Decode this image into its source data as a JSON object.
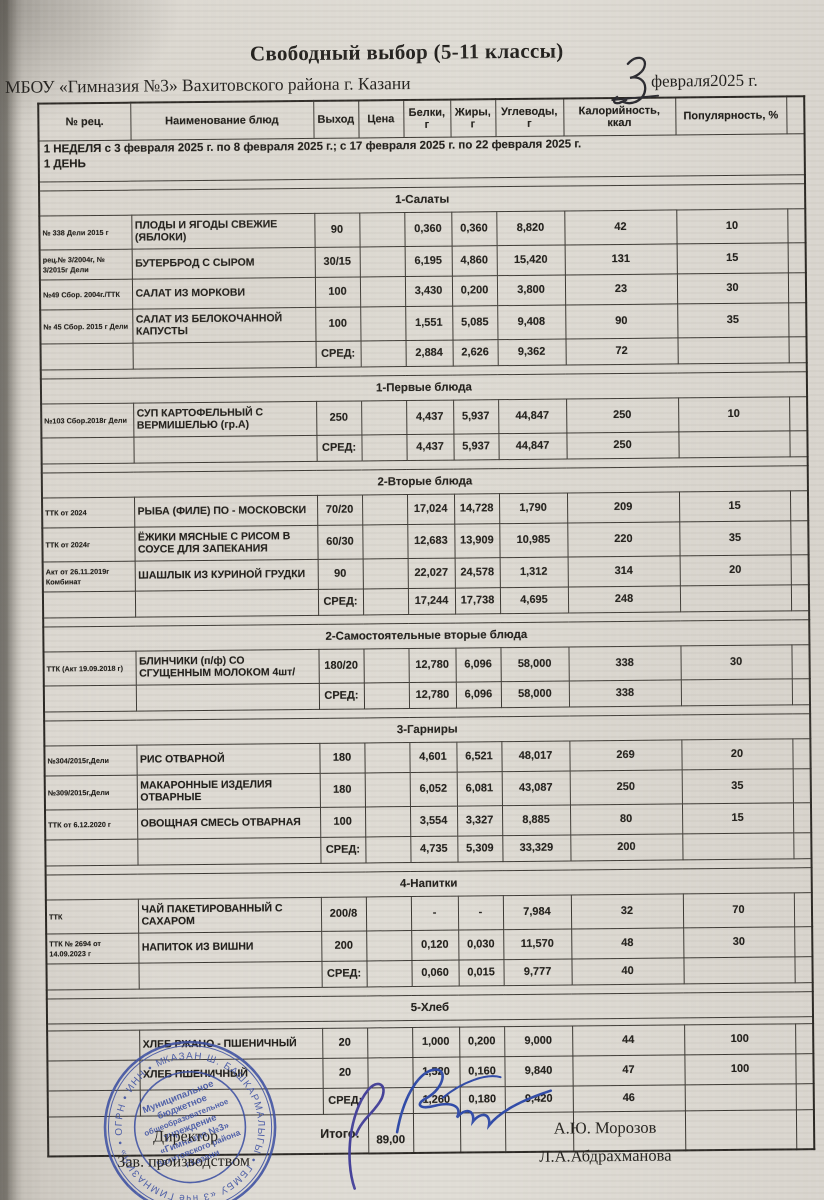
{
  "header": {
    "title": "Свободный выбор (5-11 классы)",
    "school": "МБОУ «Гимназия №3» Вахитовского района г. Казани",
    "date_day_handwritten": "3",
    "date_printed": "февраля2025 г."
  },
  "table": {
    "columns": [
      "№ рец.",
      "Наименование блюд",
      "Выход",
      "Цена",
      "Белки,\nг",
      "Жиры,\nг",
      "Углеводы,\nг",
      "Калорийность,\nккал",
      "Популярность, %"
    ],
    "week_line1": "1 НЕДЕЛЯ  с 3 февраля 2025 г. по 8 февраля 2025 г.; с 17 февраля 2025 г. по 22 февраля 2025 г.",
    "week_line2": "1 ДЕНЬ",
    "sred_label": "СРЕД:",
    "total_label": "Итого:",
    "total_value": "89,00",
    "sections": [
      {
        "title": "1-Салаты",
        "rows": [
          {
            "rec": "№ 338 Дели 2015 г",
            "name": "ПЛОДЫ И ЯГОДЫ СВЕЖИЕ (ЯБЛОКИ)",
            "out": "90",
            "price": "",
            "protein": "0,360",
            "fat": "0,360",
            "carbs": "8,820",
            "kcal": "42",
            "pop": "10",
            "tall": true
          },
          {
            "rec": "рец.№ 3/2004г, № 3/2015г Дели",
            "name": "БУТЕРБРОД С СЫРОМ",
            "out": "30/15",
            "price": "",
            "protein": "6,195",
            "fat": "4,860",
            "carbs": "15,420",
            "kcal": "131",
            "pop": "15"
          },
          {
            "rec": "№49 Сбор. 2004г./ТТК",
            "name": "САЛАТ ИЗ МОРКОВИ",
            "out": "100",
            "price": "",
            "protein": "3,430",
            "fat": "0,200",
            "carbs": "3,800",
            "kcal": "23",
            "pop": "30"
          },
          {
            "rec": "№ 45 Сбор. 2015 г Дели",
            "name": "САЛАТ ИЗ БЕЛОКОЧАННОЙ КАПУСТЫ",
            "out": "100",
            "price": "",
            "protein": "1,551",
            "fat": "5,085",
            "carbs": "9,408",
            "kcal": "90",
            "pop": "35",
            "tall": true
          }
        ],
        "sred": {
          "protein": "2,884",
          "fat": "2,626",
          "carbs": "9,362",
          "kcal": "72"
        }
      },
      {
        "title": "1-Первые блюда",
        "rows": [
          {
            "rec": "№103 Сбор.2018г Дели",
            "name": "СУП КАРТОФЕЛЬНЫЙ С ВЕРМИШЕЛЬЮ (гр.А)",
            "out": "250",
            "price": "",
            "protein": "4,437",
            "fat": "5,937",
            "carbs": "44,847",
            "kcal": "250",
            "pop": "10",
            "tall": true
          }
        ],
        "sred": {
          "protein": "4,437",
          "fat": "5,937",
          "carbs": "44,847",
          "kcal": "250"
        }
      },
      {
        "title": "2-Вторые блюда",
        "rows": [
          {
            "rec": "ТТК от 2024",
            "name": "РЫБА (ФИЛЕ) ПО - МОСКОВСКИ",
            "out": "70/20",
            "price": "",
            "protein": "17,024",
            "fat": "14,728",
            "carbs": "1,790",
            "kcal": "209",
            "pop": "15"
          },
          {
            "rec": "ТТК от 2024г",
            "name": "ЁЖИКИ МЯСНЫЕ С РИСОМ В СОУСЕ ДЛЯ ЗАПЕКАНИЯ",
            "out": "60/30",
            "price": "",
            "protein": "12,683",
            "fat": "13,909",
            "carbs": "10,985",
            "kcal": "220",
            "pop": "35",
            "tall": true
          },
          {
            "rec": "Акт от 26.11.2019г Комбинат",
            "name": "ШАШЛЫК ИЗ КУРИНОЙ ГРУДКИ",
            "out": "90",
            "price": "",
            "protein": "22,027",
            "fat": "24,578",
            "carbs": "1,312",
            "kcal": "314",
            "pop": "20"
          }
        ],
        "sred": {
          "protein": "17,244",
          "fat": "17,738",
          "carbs": "4,695",
          "kcal": "248"
        }
      },
      {
        "title": "2-Самостоятельные вторые блюда",
        "rows": [
          {
            "rec": "ТТК (Акт 19.09.2018 г)",
            "name": "БЛИНЧИКИ  (п/ф) СО СГУЩЕННЫМ МОЛОКОМ 4шт/",
            "out": "180/20",
            "price": "",
            "protein": "12,780",
            "fat": "6,096",
            "carbs": "58,000",
            "kcal": "338",
            "pop": "30",
            "tall": true
          }
        ],
        "sred": {
          "protein": "12,780",
          "fat": "6,096",
          "carbs": "58,000",
          "kcal": "338"
        }
      },
      {
        "title": "3-Гарниры",
        "rows": [
          {
            "rec": "№304/2015г,Дели",
            "name": "РИС ОТВАРНОЙ",
            "out": "180",
            "price": "",
            "protein": "4,601",
            "fat": "6,521",
            "carbs": "48,017",
            "kcal": "269",
            "pop": "20"
          },
          {
            "rec": "№309/2015г,Дели",
            "name": "МАКАРОННЫЕ ИЗДЕЛИЯ ОТВАРНЫЕ",
            "out": "180",
            "price": "",
            "protein": "6,052",
            "fat": "6,081",
            "carbs": "43,087",
            "kcal": "250",
            "pop": "35",
            "tall": true
          },
          {
            "rec": "ТТК  от 6.12.2020 г",
            "name": "ОВОЩНАЯ СМЕСЬ ОТВАРНАЯ",
            "out": "100",
            "price": "",
            "protein": "3,554",
            "fat": "3,327",
            "carbs": "8,885",
            "kcal": "80",
            "pop": "15"
          }
        ],
        "sred": {
          "protein": "4,735",
          "fat": "5,309",
          "carbs": "33,329",
          "kcal": "200"
        }
      },
      {
        "title": "4-Напитки",
        "rows": [
          {
            "rec": "ТТК",
            "name": "ЧАЙ ПАКЕТИРОВАННЫЙ  С САХАРОМ",
            "out": "200/8",
            "price": "",
            "protein": "-",
            "fat": "-",
            "carbs": "7,984",
            "kcal": "32",
            "pop": "70",
            "tall": true
          },
          {
            "rec": "ТТК № 2694 от 14.09.2023 г",
            "name": "НАПИТОК ИЗ ВИШНИ",
            "out": "200",
            "price": "",
            "protein": "0,120",
            "fat": "0,030",
            "carbs": "11,570",
            "kcal": "48",
            "pop": "30"
          }
        ],
        "sred": {
          "protein": "0,060",
          "fat": "0,015",
          "carbs": "9,777",
          "kcal": "40"
        }
      },
      {
        "title": "5-Хлеб",
        "gap_after_title": true,
        "rows": [
          {
            "rec": "",
            "name": "ХЛЕБ РЖАНО - ПШЕНИЧНЫЙ",
            "out": "20",
            "price": "",
            "protein": "1,000",
            "fat": "0,200",
            "carbs": "9,000",
            "kcal": "44",
            "pop": "100"
          },
          {
            "rec": "",
            "name": "ХЛЕБ ПШЕНИЧНЫЙ",
            "out": "20",
            "price": "",
            "protein": "1,520",
            "fat": "0,160",
            "carbs": "9,840",
            "kcal": "47",
            "pop": "100"
          }
        ],
        "sred": {
          "protein": "1,260",
          "fat": "0,180",
          "carbs": "9,420",
          "kcal": "46"
        }
      }
    ]
  },
  "footer": {
    "director_label": "Директор",
    "manager_label": "Зав. производством",
    "director_name": "А.Ю. Морозов",
    "manager_name": "Л.А.Абдрахманова",
    "stamp": {
      "ring_text": "КАЗАН Ш. БАШКАРМАЛЫГЫ • ГБМБУ «3 нче ГИМНАЗИЯ» • ОГРН • ИНН • МБОУ •",
      "center_lines": [
        "Муниципальное",
        "бюджетное",
        "общеобразовательное",
        "учреждение",
        "«Гимназия №3»",
        "Вахитовского района",
        "г.Казани"
      ],
      "color": "#3b4fa3"
    }
  }
}
